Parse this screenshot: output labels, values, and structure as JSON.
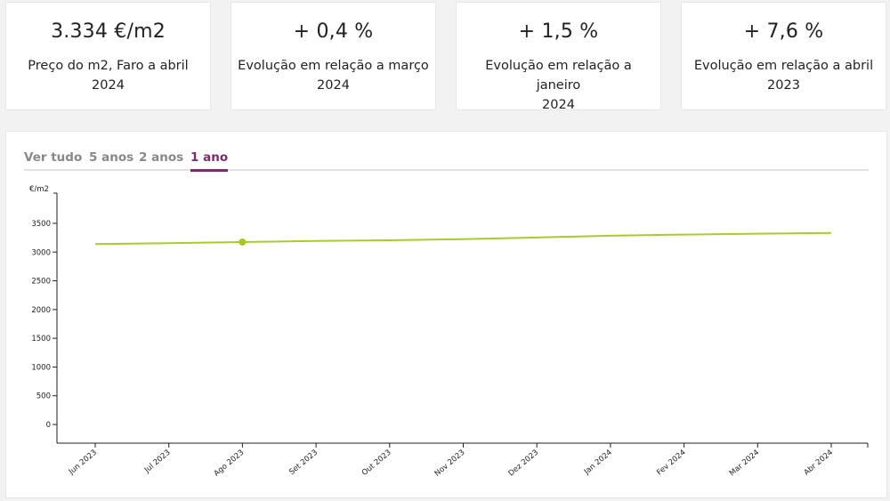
{
  "kpis": [
    {
      "value": "3.334 €/m2",
      "label_line1": "Preço do m2, Faro a abril",
      "label_line2": "2024"
    },
    {
      "value": "+ 0,4 %",
      "label_line1": "Evolução em relação a março",
      "label_line2": "2024"
    },
    {
      "value": "+ 1,5 %",
      "label_line1": "Evolução em relação a janeiro",
      "label_line2": "2024"
    },
    {
      "value": "+ 7,6 %",
      "label_line1": "Evolução em relação a abril",
      "label_line2": "2023"
    }
  ],
  "tabs": [
    {
      "label": "Ver tudo",
      "active": false
    },
    {
      "label": "5 anos",
      "active": false
    },
    {
      "label": "2 anos",
      "active": false
    },
    {
      "label": "1 ano",
      "active": true
    }
  ],
  "colors": {
    "accent": "#7b2a6e",
    "line": "#a8cc2e",
    "marker": "#a3c91a"
  },
  "chart_data": {
    "type": "line",
    "title": "",
    "xlabel": "",
    "ylabel": "€/m2",
    "ylim": [
      0,
      3500
    ],
    "yticks": [
      0,
      500,
      1000,
      1500,
      2000,
      2500,
      3000,
      3500
    ],
    "grid": false,
    "legend": null,
    "categories": [
      "Jun 2023",
      "Jul 2023",
      "Ago 2023",
      "Set 2023",
      "Out 2023",
      "Nov 2023",
      "Dez 2023",
      "Jan 2024",
      "Fev 2024",
      "Mar 2024",
      "Abr 2024"
    ],
    "series": [
      {
        "name": "Preço do m2, Faro",
        "values": [
          3140,
          3155,
          3175,
          3195,
          3205,
          3225,
          3255,
          3285,
          3305,
          3320,
          3334
        ]
      }
    ],
    "highlighted_point": {
      "category": "Ago 2023"
    }
  }
}
